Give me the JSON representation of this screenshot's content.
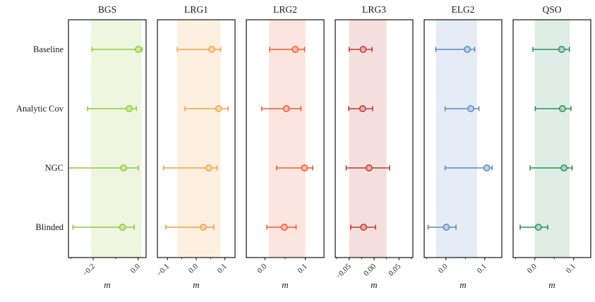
{
  "figure": {
    "background": "#ffffff",
    "frame_color": "#000000",
    "band_opacity": 0.16
  },
  "chart_data": {
    "type": "scatter",
    "subtype": "horizontal-errorbar-forest-plot",
    "rows": [
      "Baseline",
      "Analytic Cov",
      "NGC",
      "Blinded"
    ],
    "xlabel": "m",
    "grid": false,
    "legend": "none",
    "panels": [
      {
        "title": "BGS",
        "color": "#94c83d",
        "marker_fill": "#cfe6a1",
        "xlim": [
          -0.31,
          0.035
        ],
        "xticks": [
          -0.2,
          0.0
        ],
        "xtick_labels": [
          "−0.2",
          "0.0"
        ],
        "band": [
          -0.21,
          0.015
        ],
        "points": [
          {
            "row": "Baseline",
            "x": 0.0,
            "err_minus": 0.205,
            "err_plus": 0.018
          },
          {
            "row": "Analytic Cov",
            "x": -0.04,
            "err_minus": 0.185,
            "err_plus": 0.032
          },
          {
            "row": "NGC",
            "x": -0.065,
            "err_minus": 0.27,
            "err_plus": 0.065
          },
          {
            "row": "Blinded",
            "x": -0.07,
            "err_minus": 0.22,
            "err_plus": 0.052
          }
        ]
      },
      {
        "title": "LRG1",
        "color": "#f5a142",
        "marker_fill": "#fbd8ac",
        "xlim": [
          -0.135,
          0.135
        ],
        "xticks": [
          -0.1,
          0.0,
          0.1
        ],
        "xtick_labels": [
          "−0.1",
          "0.0",
          "0.1"
        ],
        "band": [
          -0.066,
          0.085
        ],
        "points": [
          {
            "row": "Baseline",
            "x": 0.054,
            "err_minus": 0.12,
            "err_plus": 0.031
          },
          {
            "row": "Analytic Cov",
            "x": 0.078,
            "err_minus": 0.117,
            "err_plus": 0.033
          },
          {
            "row": "NGC",
            "x": 0.044,
            "err_minus": 0.157,
            "err_plus": 0.029
          },
          {
            "row": "Blinded",
            "x": 0.025,
            "err_minus": 0.131,
            "err_plus": 0.036
          }
        ]
      },
      {
        "title": "LRG2",
        "color": "#ef5b32",
        "marker_fill": "#f9bda9",
        "xlim": [
          -0.046,
          0.146
        ],
        "xticks": [
          0.0,
          0.1
        ],
        "xtick_labels": [
          "0.0",
          "0.1"
        ],
        "band": [
          0.01,
          0.1
        ],
        "points": [
          {
            "row": "Baseline",
            "x": 0.075,
            "err_minus": 0.063,
            "err_plus": 0.023
          },
          {
            "row": "Analytic Cov",
            "x": 0.053,
            "err_minus": 0.061,
            "err_plus": 0.036
          },
          {
            "row": "NGC",
            "x": 0.098,
            "err_minus": 0.069,
            "err_plus": 0.02
          },
          {
            "row": "Blinded",
            "x": 0.048,
            "err_minus": 0.043,
            "err_plus": 0.029
          }
        ]
      },
      {
        "title": "LRG3",
        "color": "#c23830",
        "marker_fill": "#e6aaa5",
        "xlim": [
          -0.078,
          0.078
        ],
        "xticks": [
          -0.05,
          0.0,
          0.05
        ],
        "xtick_labels": [
          "−0.05",
          "0.00",
          "0.05"
        ],
        "band": [
          -0.05,
          0.025
        ],
        "points": [
          {
            "row": "Baseline",
            "x": -0.022,
            "err_minus": 0.028,
            "err_plus": 0.018
          },
          {
            "row": "Analytic Cov",
            "x": -0.023,
            "err_minus": 0.028,
            "err_plus": 0.02
          },
          {
            "row": "NGC",
            "x": -0.01,
            "err_minus": 0.046,
            "err_plus": 0.041
          },
          {
            "row": "Blinded",
            "x": -0.021,
            "err_minus": 0.026,
            "err_plus": 0.024
          }
        ]
      },
      {
        "title": "ELG2",
        "color": "#5b89c4",
        "marker_fill": "#bcd0e8",
        "xlim": [
          -0.056,
          0.144
        ],
        "xticks": [
          0.0,
          0.1
        ],
        "xtick_labels": [
          "0.0",
          "0.1"
        ],
        "band": [
          -0.026,
          0.08
        ],
        "points": [
          {
            "row": "Baseline",
            "x": 0.055,
            "err_minus": 0.081,
            "err_plus": 0.019
          },
          {
            "row": "Analytic Cov",
            "x": 0.064,
            "err_minus": 0.066,
            "err_plus": 0.021
          },
          {
            "row": "NGC",
            "x": 0.105,
            "err_minus": 0.107,
            "err_plus": 0.014
          },
          {
            "row": "Blinded",
            "x": 0.001,
            "err_minus": 0.047,
            "err_plus": 0.025
          }
        ]
      },
      {
        "title": "QSO",
        "color": "#2f8f5b",
        "marker_fill": "#aed4bd",
        "xlim": [
          -0.056,
          0.144
        ],
        "xticks": [
          0.0,
          0.1
        ],
        "xtick_labels": [
          "0.0",
          "0.1"
        ],
        "band": [
          0.0,
          0.09
        ],
        "points": [
          {
            "row": "Baseline",
            "x": 0.069,
            "err_minus": 0.074,
            "err_plus": 0.02
          },
          {
            "row": "Analytic Cov",
            "x": 0.071,
            "err_minus": 0.07,
            "err_plus": 0.022
          },
          {
            "row": "NGC",
            "x": 0.075,
            "err_minus": 0.087,
            "err_plus": 0.021
          },
          {
            "row": "Blinded",
            "x": 0.009,
            "err_minus": 0.047,
            "err_plus": 0.024
          }
        ]
      }
    ]
  }
}
